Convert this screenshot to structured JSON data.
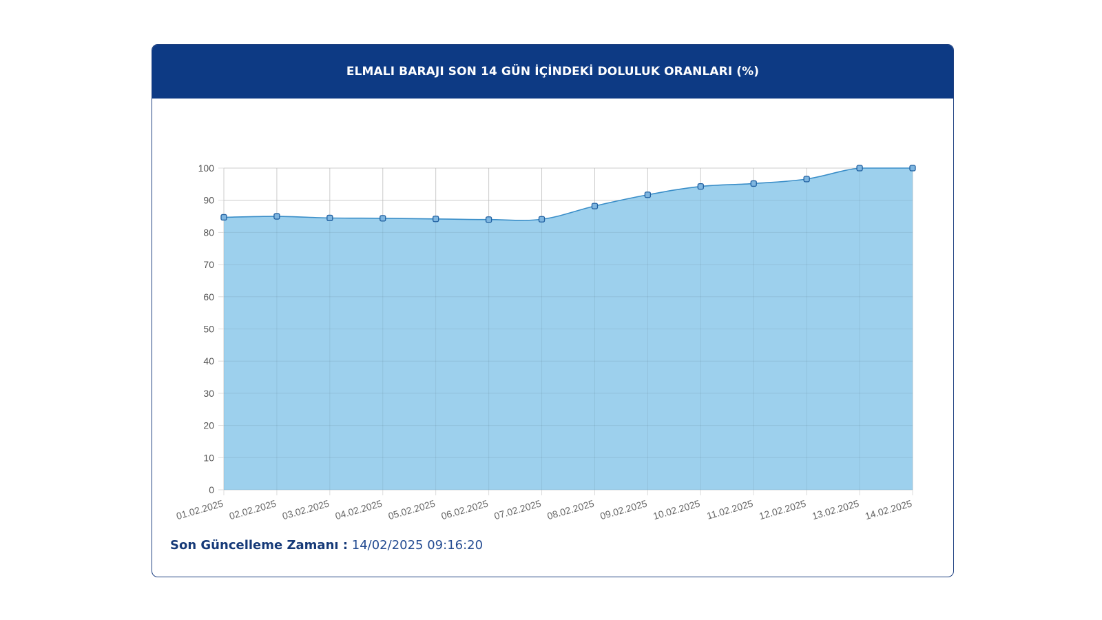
{
  "header": {
    "title": "ELMALI BARAJI SON 14 GÜN İÇİNDEKİ DOLULUK ORANLARI (%)"
  },
  "footer": {
    "label": "Son Güncelleme Zamanı :",
    "value": "14/02/2025 09:16:20"
  },
  "colors": {
    "header_bg": "#0d3a84",
    "area_fill": "#9dd0ed",
    "line": "#3a8ec8",
    "grid": "#dcdcdc"
  },
  "chart_data": {
    "type": "area",
    "title": "ELMALI BARAJI SON 14 GÜN İÇİNDEKİ DOLULUK ORANLARI (%)",
    "xlabel": "",
    "ylabel": "",
    "ylim": [
      0,
      100
    ],
    "yticks": [
      0,
      10,
      20,
      30,
      40,
      50,
      60,
      70,
      80,
      90,
      100
    ],
    "grid": true,
    "categories": [
      "01.02.2025",
      "02.02.2025",
      "03.02.2025",
      "04.02.2025",
      "05.02.2025",
      "06.02.2025",
      "07.02.2025",
      "08.02.2025",
      "09.02.2025",
      "10.02.2025",
      "11.02.2025",
      "12.02.2025",
      "13.02.2025",
      "14.02.2025"
    ],
    "values": [
      84.7,
      85.0,
      84.5,
      84.4,
      84.2,
      84.0,
      84.1,
      88.2,
      91.7,
      94.3,
      95.2,
      96.6,
      100,
      100
    ]
  }
}
